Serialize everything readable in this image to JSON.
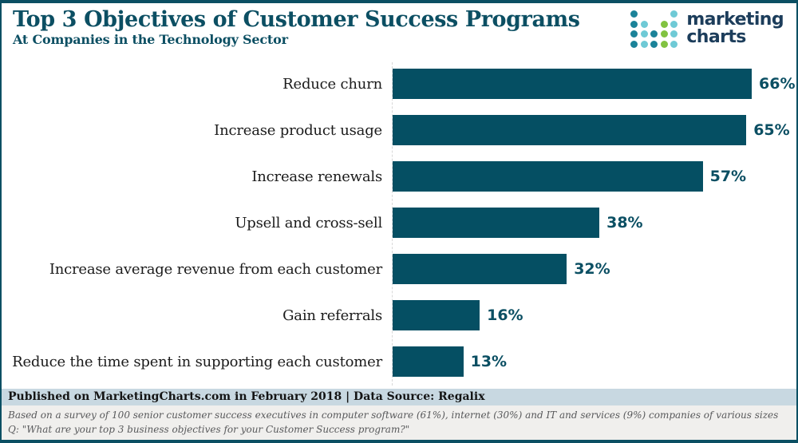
{
  "header": {
    "title": "Top 3 Objectives of Customer Success Programs",
    "subtitle": "At Companies in the Technology Sector"
  },
  "logo": {
    "wordmark_line1": "marketing",
    "wordmark_line2": "charts",
    "dot_grid": [
      "d...l",
      "dl.gl",
      "dldgl",
      "dldgl"
    ],
    "dot_colors": {
      "d": "#1B8399",
      "l": "#6FCAD6",
      "g": "#82C341"
    },
    "wordmark_color": "#1C3D5B"
  },
  "chart_data": {
    "type": "bar",
    "orientation": "horizontal",
    "title": "Top 3 Objectives of Customer Success Programs",
    "subtitle": "At Companies in the Technology Sector",
    "categories": [
      "Reduce churn",
      "Increase product usage",
      "Increase renewals",
      "Upsell and cross-sell",
      "Increase average revenue from each customer",
      "Gain referrals",
      "Reduce the time spent in supporting each customer"
    ],
    "values": [
      66,
      65,
      57,
      38,
      32,
      16,
      13
    ],
    "unit": "%",
    "value_labels": [
      "66%",
      "65%",
      "57%",
      "38%",
      "32%",
      "16%",
      "13%"
    ],
    "bar_color": "#054F63",
    "value_label_color": "#0B4F63",
    "xlim": [
      0,
      73
    ],
    "grid": false,
    "legend": "none"
  },
  "footer": {
    "published": "Published on MarketingCharts.com in February 2018 | Data Source: Regalix",
    "note_line1": "Based on a survey of 100 senior customer success executives in computer software (61%), internet (30%) and IT and services (9%) companies of various sizes",
    "note_line2": "Q: \"What are your top 3 business objectives for your Customer Success program?\""
  },
  "colors": {
    "accent_teal": "#0C4F63",
    "frame_border": "#0B4F63",
    "published_band_bg": "#C8D8E1",
    "note_band_bg": "#F0EFED",
    "note_text": "#58595B",
    "axis_line": "#D8D8D8"
  }
}
